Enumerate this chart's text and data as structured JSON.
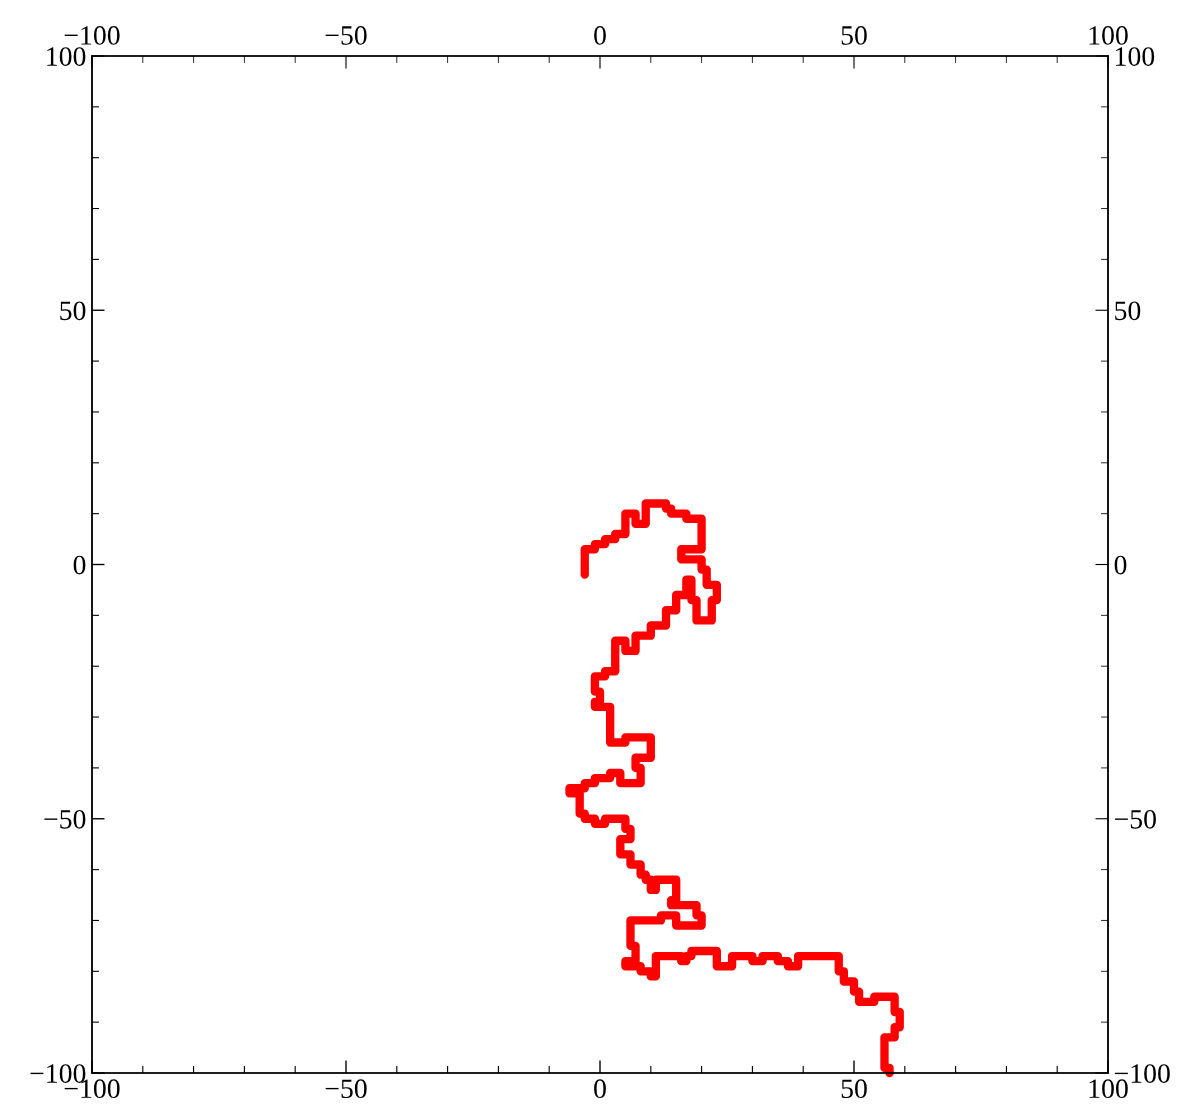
{
  "chart_data": {
    "type": "line",
    "x": [
      -3,
      -3,
      -1,
      -1,
      1,
      1,
      3,
      3,
      5,
      5,
      7,
      7,
      9,
      9,
      13,
      13,
      14,
      14,
      17,
      17,
      20,
      20,
      16,
      16,
      20,
      20,
      21,
      21,
      23,
      23,
      22,
      22,
      19,
      19,
      18,
      18,
      17,
      17,
      15,
      15,
      13,
      13,
      10,
      10,
      7,
      7,
      5,
      5,
      3,
      3,
      1,
      1,
      -1,
      -1,
      0,
      0,
      -1,
      -1,
      2,
      2,
      5,
      5,
      10,
      10,
      7,
      7,
      8,
      8,
      4,
      4,
      2,
      2,
      -1,
      -1,
      -3,
      -3,
      -6,
      -6,
      -4,
      -4,
      -3,
      -3,
      -1,
      -1,
      1,
      1,
      5,
      5,
      6,
      6,
      4,
      4,
      6,
      6,
      8,
      8,
      9,
      9,
      10,
      10,
      11,
      11,
      15,
      15,
      14,
      14,
      19,
      19,
      20,
      20,
      15,
      15,
      12,
      12,
      6,
      6,
      7,
      7,
      5,
      5,
      8,
      8,
      10,
      10,
      11,
      11,
      16,
      16,
      17,
      17,
      18,
      18,
      23,
      23,
      26,
      26,
      30,
      30,
      32,
      32,
      35,
      35,
      37,
      37,
      39,
      39,
      47,
      47,
      48,
      48,
      50,
      50,
      51,
      51,
      54,
      54,
      58,
      58,
      59,
      59,
      58,
      58,
      56,
      56,
      57,
      57
    ],
    "values": [
      -2,
      3,
      3,
      4,
      4,
      5,
      5,
      6,
      6,
      10,
      10,
      8,
      8,
      12,
      12,
      11,
      11,
      10,
      10,
      9,
      9,
      3,
      3,
      1,
      1,
      -1,
      -1,
      -4,
      -4,
      -7,
      -7,
      -11,
      -11,
      -7,
      -7,
      -3,
      -3,
      -6,
      -6,
      -9,
      -9,
      -12,
      -12,
      -14,
      -14,
      -17,
      -17,
      -15,
      -15,
      -21,
      -21,
      -22,
      -22,
      -25,
      -25,
      -27,
      -27,
      -28,
      -28,
      -35,
      -35,
      -34,
      -34,
      -38,
      -38,
      -40,
      -40,
      -43,
      -43,
      -41,
      -41,
      -42,
      -42,
      -43,
      -43,
      -44,
      -44,
      -45,
      -45,
      -49,
      -49,
      -50,
      -50,
      -51,
      -51,
      -50,
      -50,
      -52,
      -52,
      -54,
      -54,
      -57,
      -57,
      -59,
      -59,
      -61,
      -61,
      -62,
      -62,
      -64,
      -64,
      -62,
      -62,
      -66,
      -66,
      -67,
      -67,
      -69,
      -69,
      -71,
      -71,
      -69,
      -69,
      -70,
      -70,
      -75,
      -75,
      -78,
      -78,
      -79,
      -79,
      -80,
      -80,
      -81,
      -81,
      -77,
      -77,
      -78,
      -78,
      -77,
      -77,
      -76,
      -76,
      -79,
      -79,
      -77,
      -77,
      -78,
      -78,
      -77,
      -77,
      -78,
      -78,
      -79,
      -79,
      -77,
      -77,
      -80,
      -80,
      -82,
      -82,
      -84,
      -84,
      -86,
      -86,
      -85,
      -85,
      -88,
      -88,
      -91,
      -91,
      -93,
      -93,
      -99,
      -99,
      -100
    ],
    "color": "#ff0000",
    "grid": false,
    "marker": "none",
    "line_style": "solid",
    "xlim": [
      -100,
      100
    ],
    "ylim": [
      -100,
      100
    ],
    "x2lim": [
      -100,
      100
    ],
    "y2lim": [
      -100,
      100
    ],
    "xticks": [
      {
        "value": -100,
        "label": "−100"
      },
      {
        "value": -90,
        "label": null
      },
      {
        "value": -80,
        "label": null
      },
      {
        "value": -70,
        "label": null
      },
      {
        "value": -60,
        "label": null
      },
      {
        "value": -50,
        "label": "−50"
      },
      {
        "value": -40,
        "label": null
      },
      {
        "value": -30,
        "label": null
      },
      {
        "value": -20,
        "label": null
      },
      {
        "value": -10,
        "label": null
      },
      0,
      {
        "value": 10,
        "label": null
      },
      {
        "value": 20,
        "label": null
      },
      {
        "value": 30,
        "label": null
      },
      {
        "value": 40,
        "label": null
      },
      50,
      {
        "value": 60,
        "label": null
      },
      {
        "value": 70,
        "label": null
      },
      {
        "value": 80,
        "label": null
      },
      {
        "value": 90,
        "label": null
      },
      100
    ],
    "yticks": [
      {
        "value": -100,
        "label": "−100"
      },
      {
        "value": -90,
        "label": null
      },
      {
        "value": -80,
        "label": null
      },
      {
        "value": -70,
        "label": null
      },
      {
        "value": -60,
        "label": null
      },
      {
        "value": -50,
        "label": "−50"
      },
      {
        "value": -40,
        "label": null
      },
      {
        "value": -30,
        "label": null
      },
      {
        "value": -20,
        "label": null
      },
      {
        "value": -10,
        "label": null
      },
      0,
      {
        "value": 10,
        "label": null
      },
      {
        "value": 20,
        "label": null
      },
      {
        "value": 30,
        "label": null
      },
      {
        "value": 40,
        "label": null
      },
      50,
      {
        "value": 60,
        "label": null
      },
      {
        "value": 70,
        "label": null
      },
      {
        "value": 80,
        "label": null
      },
      {
        "value": 90,
        "label": null
      },
      100
    ],
    "x2ticks": [
      {
        "value": -100,
        "label": "−100"
      },
      {
        "value": -90,
        "label": null
      },
      {
        "value": -80,
        "label": null
      },
      {
        "value": -70,
        "label": null
      },
      {
        "value": -60,
        "label": null
      },
      {
        "value": -50,
        "label": "−50"
      },
      {
        "value": -40,
        "label": null
      },
      {
        "value": -30,
        "label": null
      },
      {
        "value": -20,
        "label": null
      },
      {
        "value": -10,
        "label": null
      },
      0,
      {
        "value": 10,
        "label": null
      },
      {
        "value": 20,
        "label": null
      },
      {
        "value": 30,
        "label": null
      },
      {
        "value": 40,
        "label": null
      },
      50,
      {
        "value": 60,
        "label": null
      },
      {
        "value": 70,
        "label": null
      },
      {
        "value": 80,
        "label": null
      },
      {
        "value": 90,
        "label": null
      },
      100
    ],
    "y2ticks": [
      {
        "value": -100,
        "label": "−100"
      },
      {
        "value": -90,
        "label": null
      },
      {
        "value": -80,
        "label": null
      },
      {
        "value": -70,
        "label": null
      },
      {
        "value": -60,
        "label": null
      },
      {
        "value": -50,
        "label": "−50"
      },
      {
        "value": -40,
        "label": null
      },
      {
        "value": -30,
        "label": null
      },
      {
        "value": -20,
        "label": null
      },
      {
        "value": -10,
        "label": null
      },
      0,
      {
        "value": 10,
        "label": null
      },
      {
        "value": 20,
        "label": null
      },
      {
        "value": 30,
        "label": null
      },
      {
        "value": 40,
        "label": null
      },
      50,
      {
        "value": 60,
        "label": null
      },
      {
        "value": 70,
        "label": null
      },
      {
        "value": 80,
        "label": null
      },
      {
        "value": 90,
        "label": null
      },
      100
    ]
  }
}
